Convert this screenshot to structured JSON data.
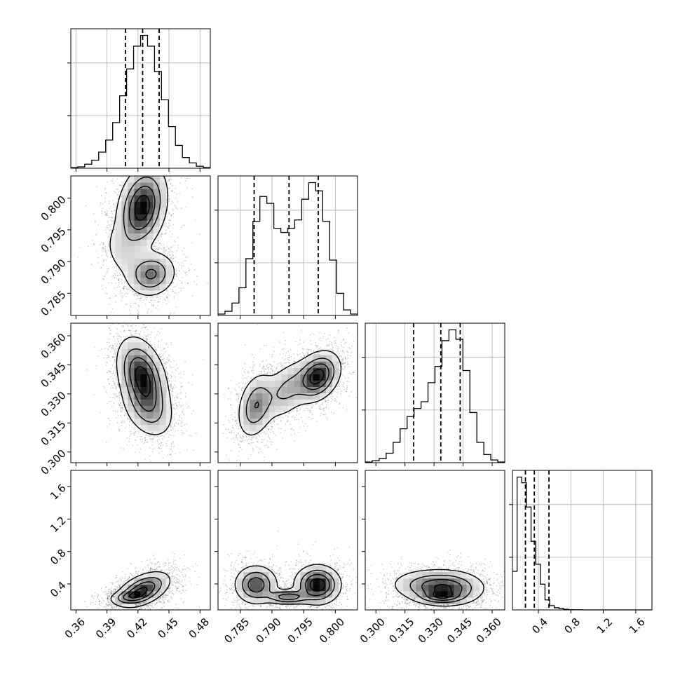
{
  "chart_data": {
    "type": "corner",
    "parameters": [
      {
        "index": 0,
        "range": [
          0.355,
          0.49
        ],
        "ticks": [
          0.36,
          0.39,
          0.42,
          0.45,
          0.48
        ],
        "tick_labels": [
          "0.36",
          "0.39",
          "0.42",
          "0.45",
          "0.48"
        ],
        "quantiles": [
          0.408,
          0.4245,
          0.4405
        ]
      },
      {
        "index": 1,
        "range": [
          0.7815,
          0.8035
        ],
        "ticks": [
          0.785,
          0.79,
          0.795,
          0.8
        ],
        "tick_labels": [
          "0.785",
          "0.790",
          "0.795",
          "0.800"
        ],
        "quantiles": [
          0.7872,
          0.7927,
          0.7973
        ]
      },
      {
        "index": 2,
        "range": [
          0.2945,
          0.3665
        ],
        "ticks": [
          0.3,
          0.315,
          0.33,
          0.345,
          0.36
        ],
        "tick_labels": [
          "0.300",
          "0.315",
          "0.330",
          "0.345",
          "0.360"
        ],
        "quantiles": [
          0.3195,
          0.3335,
          0.3435
        ]
      },
      {
        "index": 3,
        "range": [
          0.08,
          1.8
        ],
        "ticks": [
          0.4,
          0.8,
          1.2,
          1.6
        ],
        "tick_labels": [
          "0.4",
          "0.8",
          "1.2",
          "1.6"
        ],
        "quantiles": [
          0.24,
          0.35,
          0.53
        ]
      }
    ],
    "histograms": [
      {
        "param": 0,
        "bin_start": 0.355,
        "bin_width": 0.00675,
        "counts": [
          0.5,
          1,
          3,
          6,
          12,
          21,
          34,
          54,
          74,
          91,
          99,
          91,
          72,
          51,
          31,
          17,
          8,
          4,
          1.5,
          0.5
        ]
      },
      {
        "param": 1,
        "bin_start": 0.7815,
        "bin_width": 0.0011,
        "counts": [
          1,
          3,
          9,
          20,
          41,
          68,
          86,
          81,
          63,
          60,
          63,
          69,
          84,
          96,
          90,
          68,
          40,
          16,
          4,
          1
        ]
      },
      {
        "param": 2,
        "bin_start": 0.2945,
        "bin_width": 0.0036,
        "counts": [
          0.5,
          1.5,
          3,
          7,
          15,
          25,
          34,
          40,
          45,
          59,
          71,
          90,
          98,
          91,
          68,
          37,
          15,
          6,
          2,
          0.5
        ]
      },
      {
        "param": 3,
        "bin_start": 0.08,
        "bin_width": 0.0573,
        "counts": [
          27,
          93,
          89,
          72,
          48,
          32,
          18,
          7,
          3,
          1.5,
          1,
          0.4,
          0.2,
          0.1,
          0.1,
          0,
          0,
          0,
          0,
          0,
          0,
          0,
          0,
          0,
          0,
          0,
          0,
          0,
          0,
          0
        ]
      }
    ],
    "pairs": [
      {
        "x": 0,
        "y": 1,
        "peaks": [
          {
            "x": 0.424,
            "y": 0.7985,
            "sx": 0.012,
            "sy": 0.0033,
            "rho": 0.25,
            "w": 0.55
          },
          {
            "x": 0.433,
            "y": 0.788,
            "sx": 0.012,
            "sy": 0.0018,
            "rho": 0.1,
            "w": 0.35
          },
          {
            "x": 0.405,
            "y": 0.7915,
            "sx": 0.011,
            "sy": 0.0025,
            "rho": -0.3,
            "w": 0.1
          }
        ]
      },
      {
        "x": 0,
        "y": 2,
        "peaks": [
          {
            "x": 0.424,
            "y": 0.339,
            "sx": 0.012,
            "sy": 0.01,
            "rho": -0.35,
            "w": 0.7
          },
          {
            "x": 0.43,
            "y": 0.322,
            "sx": 0.013,
            "sy": 0.008,
            "rho": -0.3,
            "w": 0.3
          }
        ]
      },
      {
        "x": 1,
        "y": 2,
        "peaks": [
          {
            "x": 0.7972,
            "y": 0.339,
            "sx": 0.0018,
            "sy": 0.0065,
            "rho": 0.3,
            "w": 0.5
          },
          {
            "x": 0.7875,
            "y": 0.324,
            "sx": 0.0015,
            "sy": 0.0085,
            "rho": 0.3,
            "w": 0.3
          },
          {
            "x": 0.7923,
            "y": 0.332,
            "sx": 0.002,
            "sy": 0.008,
            "rho": 0.4,
            "w": 0.2
          }
        ]
      },
      {
        "x": 0,
        "y": 3,
        "peaks": [
          {
            "x": 0.425,
            "y": 0.33,
            "sx": 0.013,
            "sy": 0.11,
            "rho": 0.5,
            "w": 0.7
          },
          {
            "x": 0.412,
            "y": 0.24,
            "sx": 0.01,
            "sy": 0.045,
            "rho": 0.3,
            "w": 0.3
          }
        ]
      },
      {
        "x": 1,
        "y": 3,
        "peaks": [
          {
            "x": 0.7875,
            "y": 0.39,
            "sx": 0.0017,
            "sy": 0.12,
            "rho": 0,
            "w": 0.3
          },
          {
            "x": 0.7972,
            "y": 0.39,
            "sx": 0.0018,
            "sy": 0.12,
            "rho": 0,
            "w": 0.4
          },
          {
            "x": 0.7925,
            "y": 0.24,
            "sx": 0.0018,
            "sy": 0.045,
            "rho": 0,
            "w": 0.3
          }
        ]
      },
      {
        "x": 2,
        "y": 3,
        "peaks": [
          {
            "x": 0.336,
            "y": 0.35,
            "sx": 0.01,
            "sy": 0.11,
            "rho": 0,
            "w": 0.55
          },
          {
            "x": 0.334,
            "y": 0.24,
            "sx": 0.006,
            "sy": 0.04,
            "rho": 0,
            "w": 0.3
          },
          {
            "x": 0.322,
            "y": 0.4,
            "sx": 0.009,
            "sy": 0.1,
            "rho": 0,
            "w": 0.15
          }
        ]
      }
    ],
    "contour_levels": [
      0.12,
      0.35,
      0.6,
      0.85
    ],
    "grid": true,
    "title": "",
    "xlabel": "",
    "ylabel": ""
  }
}
